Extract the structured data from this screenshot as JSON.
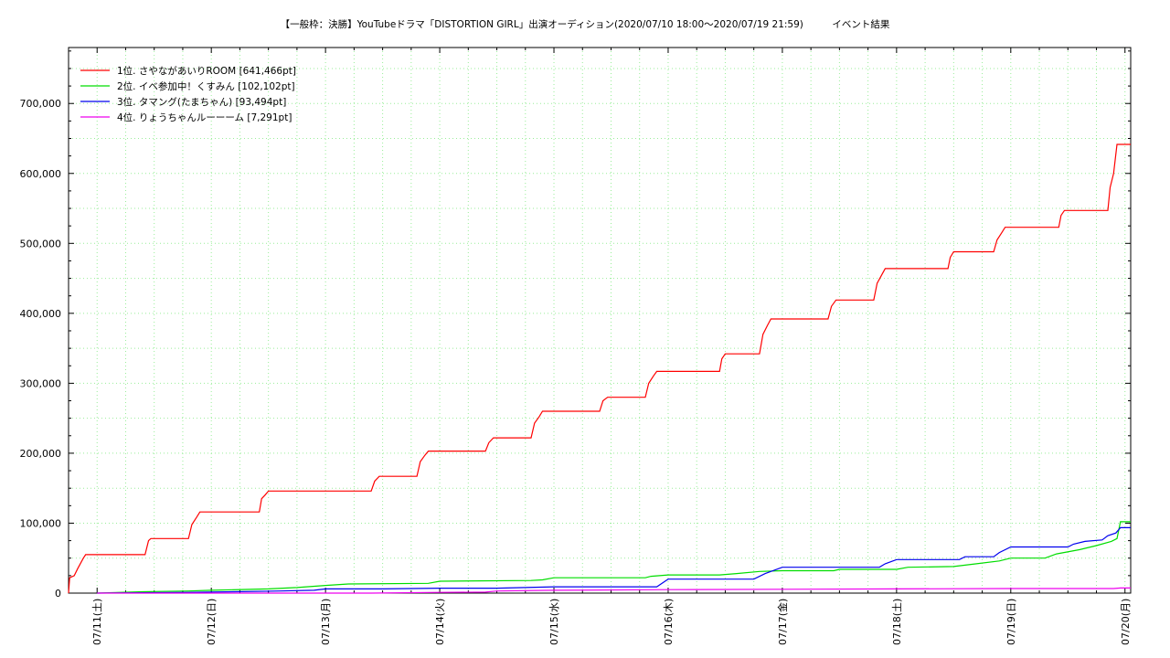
{
  "chart_data": {
    "type": "line",
    "title": "【一般枠：決勝】YouTubeドラマ「DISTORTION GIRL」出演オーディション(2020/07/10 18:00〜2020/07/19 21:59)　　　イベント結果",
    "xlabel": "",
    "ylabel": "",
    "x_ticks": [
      "07/11(土)",
      "07/12(日)",
      "07/13(月)",
      "07/14(火)",
      "07/15(水)",
      "07/16(木)",
      "07/17(金)",
      "07/18(土)",
      "07/19(日)",
      "07/20(月)"
    ],
    "xlim": [
      -0.25,
      9.05
    ],
    "ylim": [
      0,
      780000
    ],
    "y_ticks": [
      0,
      100000,
      200000,
      300000,
      400000,
      500000,
      600000,
      700000
    ],
    "y_tick_labels": [
      "0",
      "100,000",
      "200,000",
      "300,000",
      "400,000",
      "500,000",
      "600,000",
      "700,000"
    ],
    "grid": true,
    "legend_position": "top-left",
    "series": [
      {
        "name": "1位. さやながあいりROOM [641,466pt]",
        "color": "#ff0000",
        "points": [
          [
            -0.25,
            0
          ],
          [
            -0.24,
            22000
          ],
          [
            -0.2,
            25000
          ],
          [
            -0.17,
            35000
          ],
          [
            -0.12,
            50000
          ],
          [
            -0.1,
            55000
          ],
          [
            0.42,
            55000
          ],
          [
            0.45,
            75000
          ],
          [
            0.47,
            78000
          ],
          [
            0.8,
            78000
          ],
          [
            0.83,
            98000
          ],
          [
            0.87,
            108000
          ],
          [
            0.9,
            116000
          ],
          [
            1.42,
            116000
          ],
          [
            1.44,
            135000
          ],
          [
            1.47,
            140000
          ],
          [
            1.5,
            146000
          ],
          [
            2.4,
            146000
          ],
          [
            2.43,
            160000
          ],
          [
            2.47,
            167000
          ],
          [
            2.8,
            167000
          ],
          [
            2.83,
            188000
          ],
          [
            2.87,
            197000
          ],
          [
            2.9,
            203000
          ],
          [
            3.4,
            203000
          ],
          [
            3.43,
            215000
          ],
          [
            3.47,
            222000
          ],
          [
            3.8,
            222000
          ],
          [
            3.83,
            243000
          ],
          [
            3.87,
            252000
          ],
          [
            3.9,
            260000
          ],
          [
            4.4,
            260000
          ],
          [
            4.43,
            275000
          ],
          [
            4.47,
            280000
          ],
          [
            4.8,
            280000
          ],
          [
            4.83,
            300000
          ],
          [
            4.87,
            310000
          ],
          [
            4.9,
            317000
          ],
          [
            5.45,
            317000
          ],
          [
            5.47,
            335000
          ],
          [
            5.5,
            342000
          ],
          [
            5.8,
            342000
          ],
          [
            5.83,
            370000
          ],
          [
            5.87,
            383000
          ],
          [
            5.9,
            392000
          ],
          [
            6.4,
            392000
          ],
          [
            6.43,
            410000
          ],
          [
            6.47,
            419000
          ],
          [
            6.8,
            419000
          ],
          [
            6.83,
            443000
          ],
          [
            6.87,
            455000
          ],
          [
            6.9,
            464000
          ],
          [
            7.45,
            464000
          ],
          [
            7.47,
            480000
          ],
          [
            7.5,
            488000
          ],
          [
            7.85,
            488000
          ],
          [
            7.88,
            505000
          ],
          [
            7.92,
            515000
          ],
          [
            7.95,
            523000
          ],
          [
            8.42,
            523000
          ],
          [
            8.44,
            540000
          ],
          [
            8.47,
            547000
          ],
          [
            8.85,
            547000
          ],
          [
            8.87,
            580000
          ],
          [
            8.9,
            600000
          ],
          [
            8.93,
            641466
          ],
          [
            9.05,
            641466
          ]
        ]
      },
      {
        "name": "2位. イベ参加中！くすみん [102,102pt]",
        "color": "#00dd00",
        "points": [
          [
            0.0,
            0
          ],
          [
            0.4,
            2000
          ],
          [
            0.8,
            3000
          ],
          [
            1.0,
            4000
          ],
          [
            1.5,
            6000
          ],
          [
            1.75,
            8000
          ],
          [
            2.0,
            11000
          ],
          [
            2.2,
            13000
          ],
          [
            2.9,
            14000
          ],
          [
            3.0,
            17000
          ],
          [
            3.8,
            18000
          ],
          [
            3.9,
            19000
          ],
          [
            4.0,
            22000
          ],
          [
            4.8,
            22000
          ],
          [
            4.85,
            24000
          ],
          [
            5.0,
            26000
          ],
          [
            5.45,
            26000
          ],
          [
            5.6,
            28000
          ],
          [
            5.8,
            31000
          ],
          [
            6.0,
            32000
          ],
          [
            6.45,
            32000
          ],
          [
            6.5,
            34000
          ],
          [
            7.0,
            34000
          ],
          [
            7.1,
            37000
          ],
          [
            7.5,
            38000
          ],
          [
            7.7,
            42000
          ],
          [
            7.9,
            46000
          ],
          [
            8.0,
            50000
          ],
          [
            8.3,
            50000
          ],
          [
            8.4,
            56000
          ],
          [
            8.6,
            62000
          ],
          [
            8.75,
            68000
          ],
          [
            8.88,
            74000
          ],
          [
            8.93,
            78000
          ],
          [
            8.96,
            102102
          ],
          [
            9.05,
            102102
          ]
        ]
      },
      {
        "name": "3位. タマング(たまちゃん) [93,494pt]",
        "color": "#0000ee",
        "points": [
          [
            0.0,
            0
          ],
          [
            0.8,
            1000
          ],
          [
            1.2,
            2000
          ],
          [
            1.6,
            3000
          ],
          [
            1.9,
            4000
          ],
          [
            2.0,
            6000
          ],
          [
            2.5,
            6000
          ],
          [
            3.0,
            7000
          ],
          [
            3.5,
            7000
          ],
          [
            4.0,
            9000
          ],
          [
            4.9,
            9000
          ],
          [
            5.0,
            20000
          ],
          [
            5.75,
            20000
          ],
          [
            5.85,
            28000
          ],
          [
            6.0,
            37000
          ],
          [
            6.85,
            37000
          ],
          [
            6.9,
            42000
          ],
          [
            7.0,
            48000
          ],
          [
            7.55,
            48000
          ],
          [
            7.6,
            52000
          ],
          [
            7.85,
            52000
          ],
          [
            7.9,
            58000
          ],
          [
            8.0,
            66000
          ],
          [
            8.5,
            66000
          ],
          [
            8.55,
            70000
          ],
          [
            8.65,
            74000
          ],
          [
            8.8,
            76000
          ],
          [
            8.85,
            82000
          ],
          [
            8.92,
            86000
          ],
          [
            8.96,
            93494
          ],
          [
            9.05,
            93494
          ]
        ]
      },
      {
        "name": "4位. りょうちゃんルーーーム [7,291pt]",
        "color": "#ee00ee",
        "points": [
          [
            0.0,
            0
          ],
          [
            2.4,
            0
          ],
          [
            3.0,
            1000
          ],
          [
            3.4,
            1500
          ],
          [
            3.5,
            3000
          ],
          [
            4.0,
            4000
          ],
          [
            5.0,
            5000
          ],
          [
            6.0,
            5500
          ],
          [
            7.0,
            6000
          ],
          [
            8.0,
            6500
          ],
          [
            8.9,
            6500
          ],
          [
            8.96,
            7291
          ],
          [
            9.05,
            7291
          ]
        ]
      }
    ]
  }
}
